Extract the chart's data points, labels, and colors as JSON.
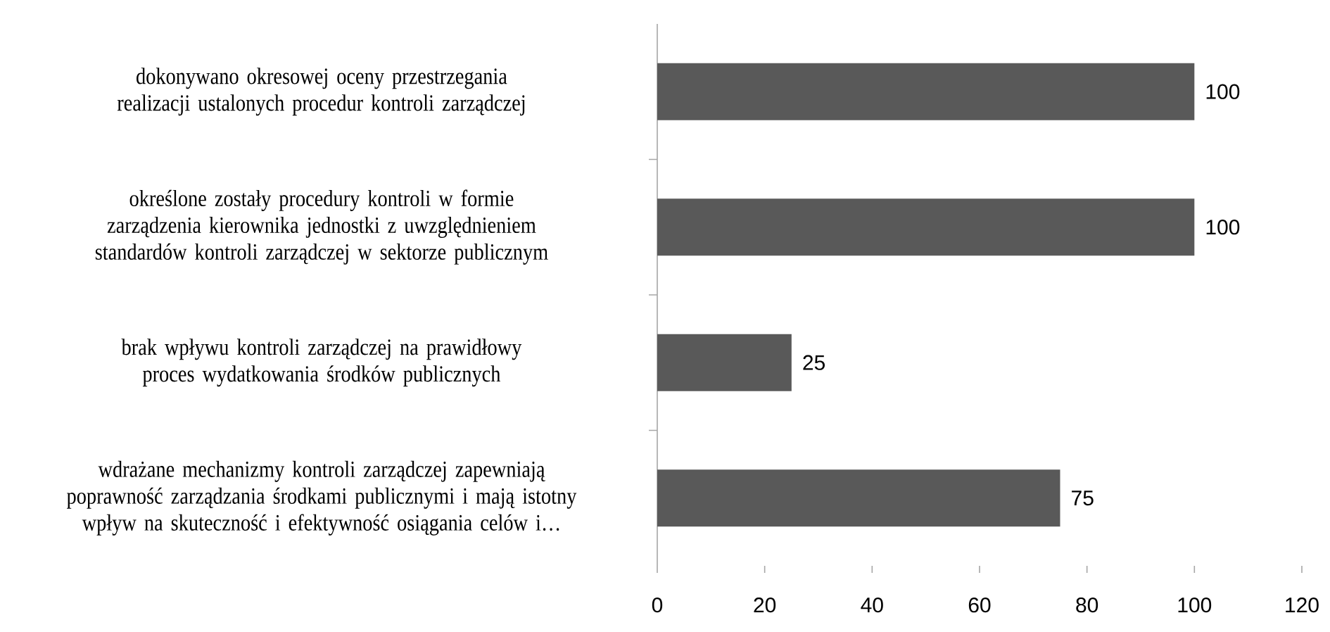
{
  "chart_data": {
    "type": "bar",
    "orientation": "horizontal",
    "categories": [
      "dokonywano okresowej oceny przestrzegania realizacji ustalonych procedur kontroli zarządczej",
      "określone zostały procedury kontroli w formie zarządzenia kierownika jednostki z uwzględnieniem standardów kontroli zarządczej w sektorze publicznym",
      "brak wpływu kontroli zarządczej na prawidłowy proces wydatkowania środków publicznych",
      "wdrażane mechanizmy kontroli zarządczej zapewniają poprawność zarządzania środkami publicznymi i mają istotny wpływ na skuteczność i efektywność osiągania celów i…"
    ],
    "values": [
      100,
      100,
      25,
      75
    ],
    "color": "#595959",
    "xlim": [
      0,
      120
    ],
    "xticks": [
      0,
      20,
      40,
      60,
      80,
      100,
      120
    ],
    "data_labels": true
  }
}
